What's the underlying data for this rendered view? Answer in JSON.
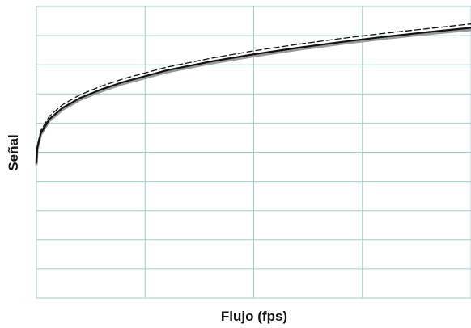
{
  "chart_data": {
    "type": "line",
    "title": "",
    "xlabel": "Flujo (fps)",
    "ylabel": "Señal",
    "xlim": [
      0,
      1
    ],
    "ylim": [
      0,
      1
    ],
    "grid": true,
    "x_gridlines": 4,
    "y_gridlines": 10,
    "x_ticks": [],
    "y_ticks": [],
    "series": [
      {
        "style": "solid-gray",
        "color": "#9a9a9a",
        "x": [
          0.0,
          0.002,
          0.01,
          0.03,
          0.06,
          0.1,
          0.15,
          0.2,
          0.3,
          0.4,
          0.5,
          0.6,
          0.7,
          0.8,
          0.9,
          1.0
        ],
        "y": [
          0.46,
          0.51,
          0.56,
          0.608,
          0.646,
          0.68,
          0.71,
          0.735,
          0.775,
          0.805,
          0.83,
          0.852,
          0.872,
          0.89,
          0.906,
          0.92
        ]
      },
      {
        "style": "solid-black",
        "color": "#111111",
        "x": [
          0.0,
          0.002,
          0.01,
          0.03,
          0.06,
          0.1,
          0.15,
          0.2,
          0.3,
          0.4,
          0.5,
          0.6,
          0.7,
          0.8,
          0.9,
          1.0
        ],
        "y": [
          0.465,
          0.515,
          0.565,
          0.614,
          0.652,
          0.686,
          0.716,
          0.741,
          0.781,
          0.811,
          0.836,
          0.858,
          0.878,
          0.896,
          0.912,
          0.927
        ]
      },
      {
        "style": "dashed-black",
        "color": "#111111",
        "x": [
          0.0,
          0.002,
          0.01,
          0.03,
          0.06,
          0.1,
          0.15,
          0.2,
          0.3,
          0.4,
          0.5,
          0.6,
          0.7,
          0.8,
          0.9,
          1.0
        ],
        "y": [
          0.47,
          0.522,
          0.574,
          0.624,
          0.663,
          0.697,
          0.727,
          0.752,
          0.792,
          0.822,
          0.848,
          0.87,
          0.89,
          0.908,
          0.924,
          0.94
        ]
      }
    ],
    "colors": {
      "grid": "#9fd0c8",
      "frame": "#9fd0c8"
    }
  }
}
